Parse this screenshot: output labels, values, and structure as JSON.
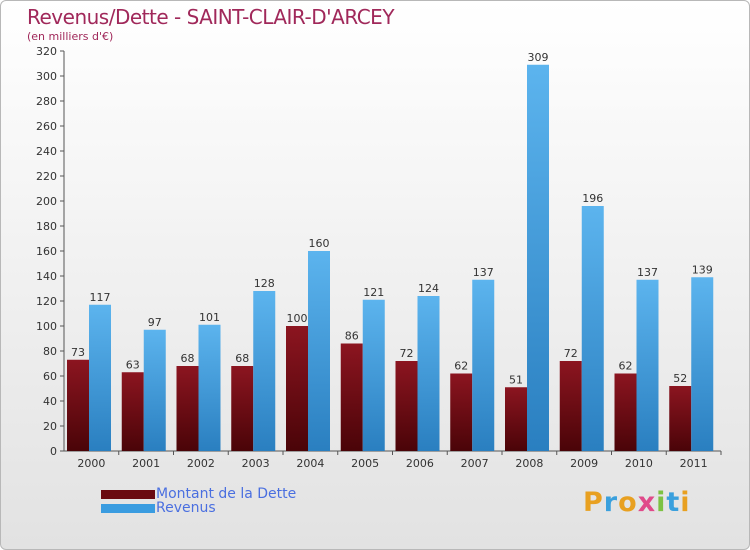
{
  "title": "Revenus/Dette - SAINT-CLAIR-D'ARCEY",
  "subtitle": "(en milliers d'€)",
  "chart_data": {
    "type": "bar",
    "categories": [
      "2000",
      "2001",
      "2002",
      "2003",
      "2004",
      "2005",
      "2006",
      "2007",
      "2008",
      "2009",
      "2010",
      "2011"
    ],
    "series": [
      {
        "name": "Montant de la Dette",
        "color": "#7a0c14",
        "values": [
          73,
          63,
          68,
          68,
          100,
          86,
          72,
          62,
          51,
          72,
          62,
          52
        ]
      },
      {
        "name": "Revenus",
        "color": "#3a9ce0",
        "values": [
          117,
          97,
          101,
          128,
          160,
          121,
          124,
          137,
          309,
          196,
          137,
          139
        ]
      }
    ],
    "ylim": [
      0,
      320
    ],
    "ytick_step": 20,
    "grid": false,
    "legend_placement": "bottom-left"
  },
  "legend": [
    {
      "label": "Montant de la Dette",
      "color": "#7a0c14"
    },
    {
      "label": "Revenus",
      "color": "#3a9ce0"
    }
  ],
  "logo": {
    "letters": [
      "P",
      "r",
      "o",
      "x",
      "i",
      "t",
      "i"
    ],
    "colors": [
      "#e8a020",
      "#3aa0dd",
      "#e8a020",
      "#e04a8a",
      "#7cc242",
      "#3aa0dd",
      "#e8a020"
    ]
  }
}
